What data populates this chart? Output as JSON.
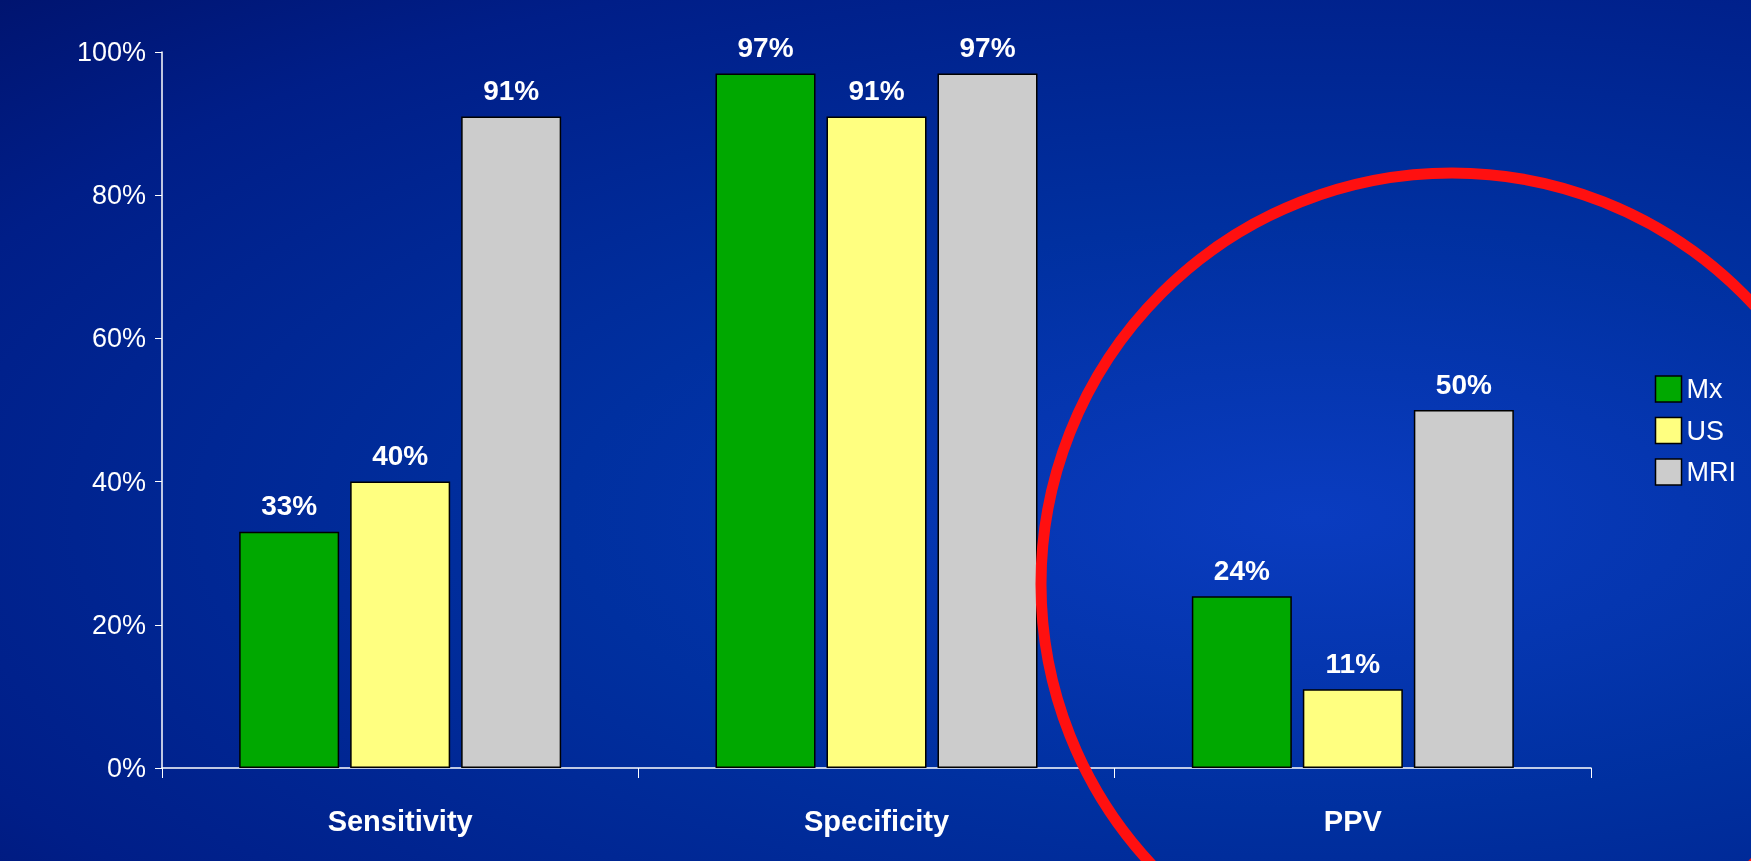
{
  "chart_data": {
    "type": "bar",
    "categories": [
      "Sensitivity",
      "Specificity",
      "PPV"
    ],
    "series": [
      {
        "name": "Mx",
        "color": "#00a800",
        "values": [
          33,
          97,
          24
        ]
      },
      {
        "name": "US",
        "color": "#ffff80",
        "values": [
          40,
          91,
          11
        ]
      },
      {
        "name": "MRI",
        "color": "#cccccc",
        "values": [
          91,
          97,
          50
        ]
      }
    ],
    "ylim": [
      0,
      100
    ],
    "yticks": [
      {
        "value": 0,
        "label": "0%"
      },
      {
        "value": 20,
        "label": "20%"
      },
      {
        "value": 40,
        "label": "40%"
      },
      {
        "value": 60,
        "label": "60%"
      },
      {
        "value": 80,
        "label": "80%"
      },
      {
        "value": 100,
        "label": "100%"
      }
    ],
    "value_labels": [
      [
        "33%",
        "97%",
        "24%"
      ],
      [
        "40%",
        "91%",
        "11%"
      ],
      [
        "91%",
        "97%",
        "50%"
      ]
    ],
    "grid": false,
    "legend": "right"
  }
}
